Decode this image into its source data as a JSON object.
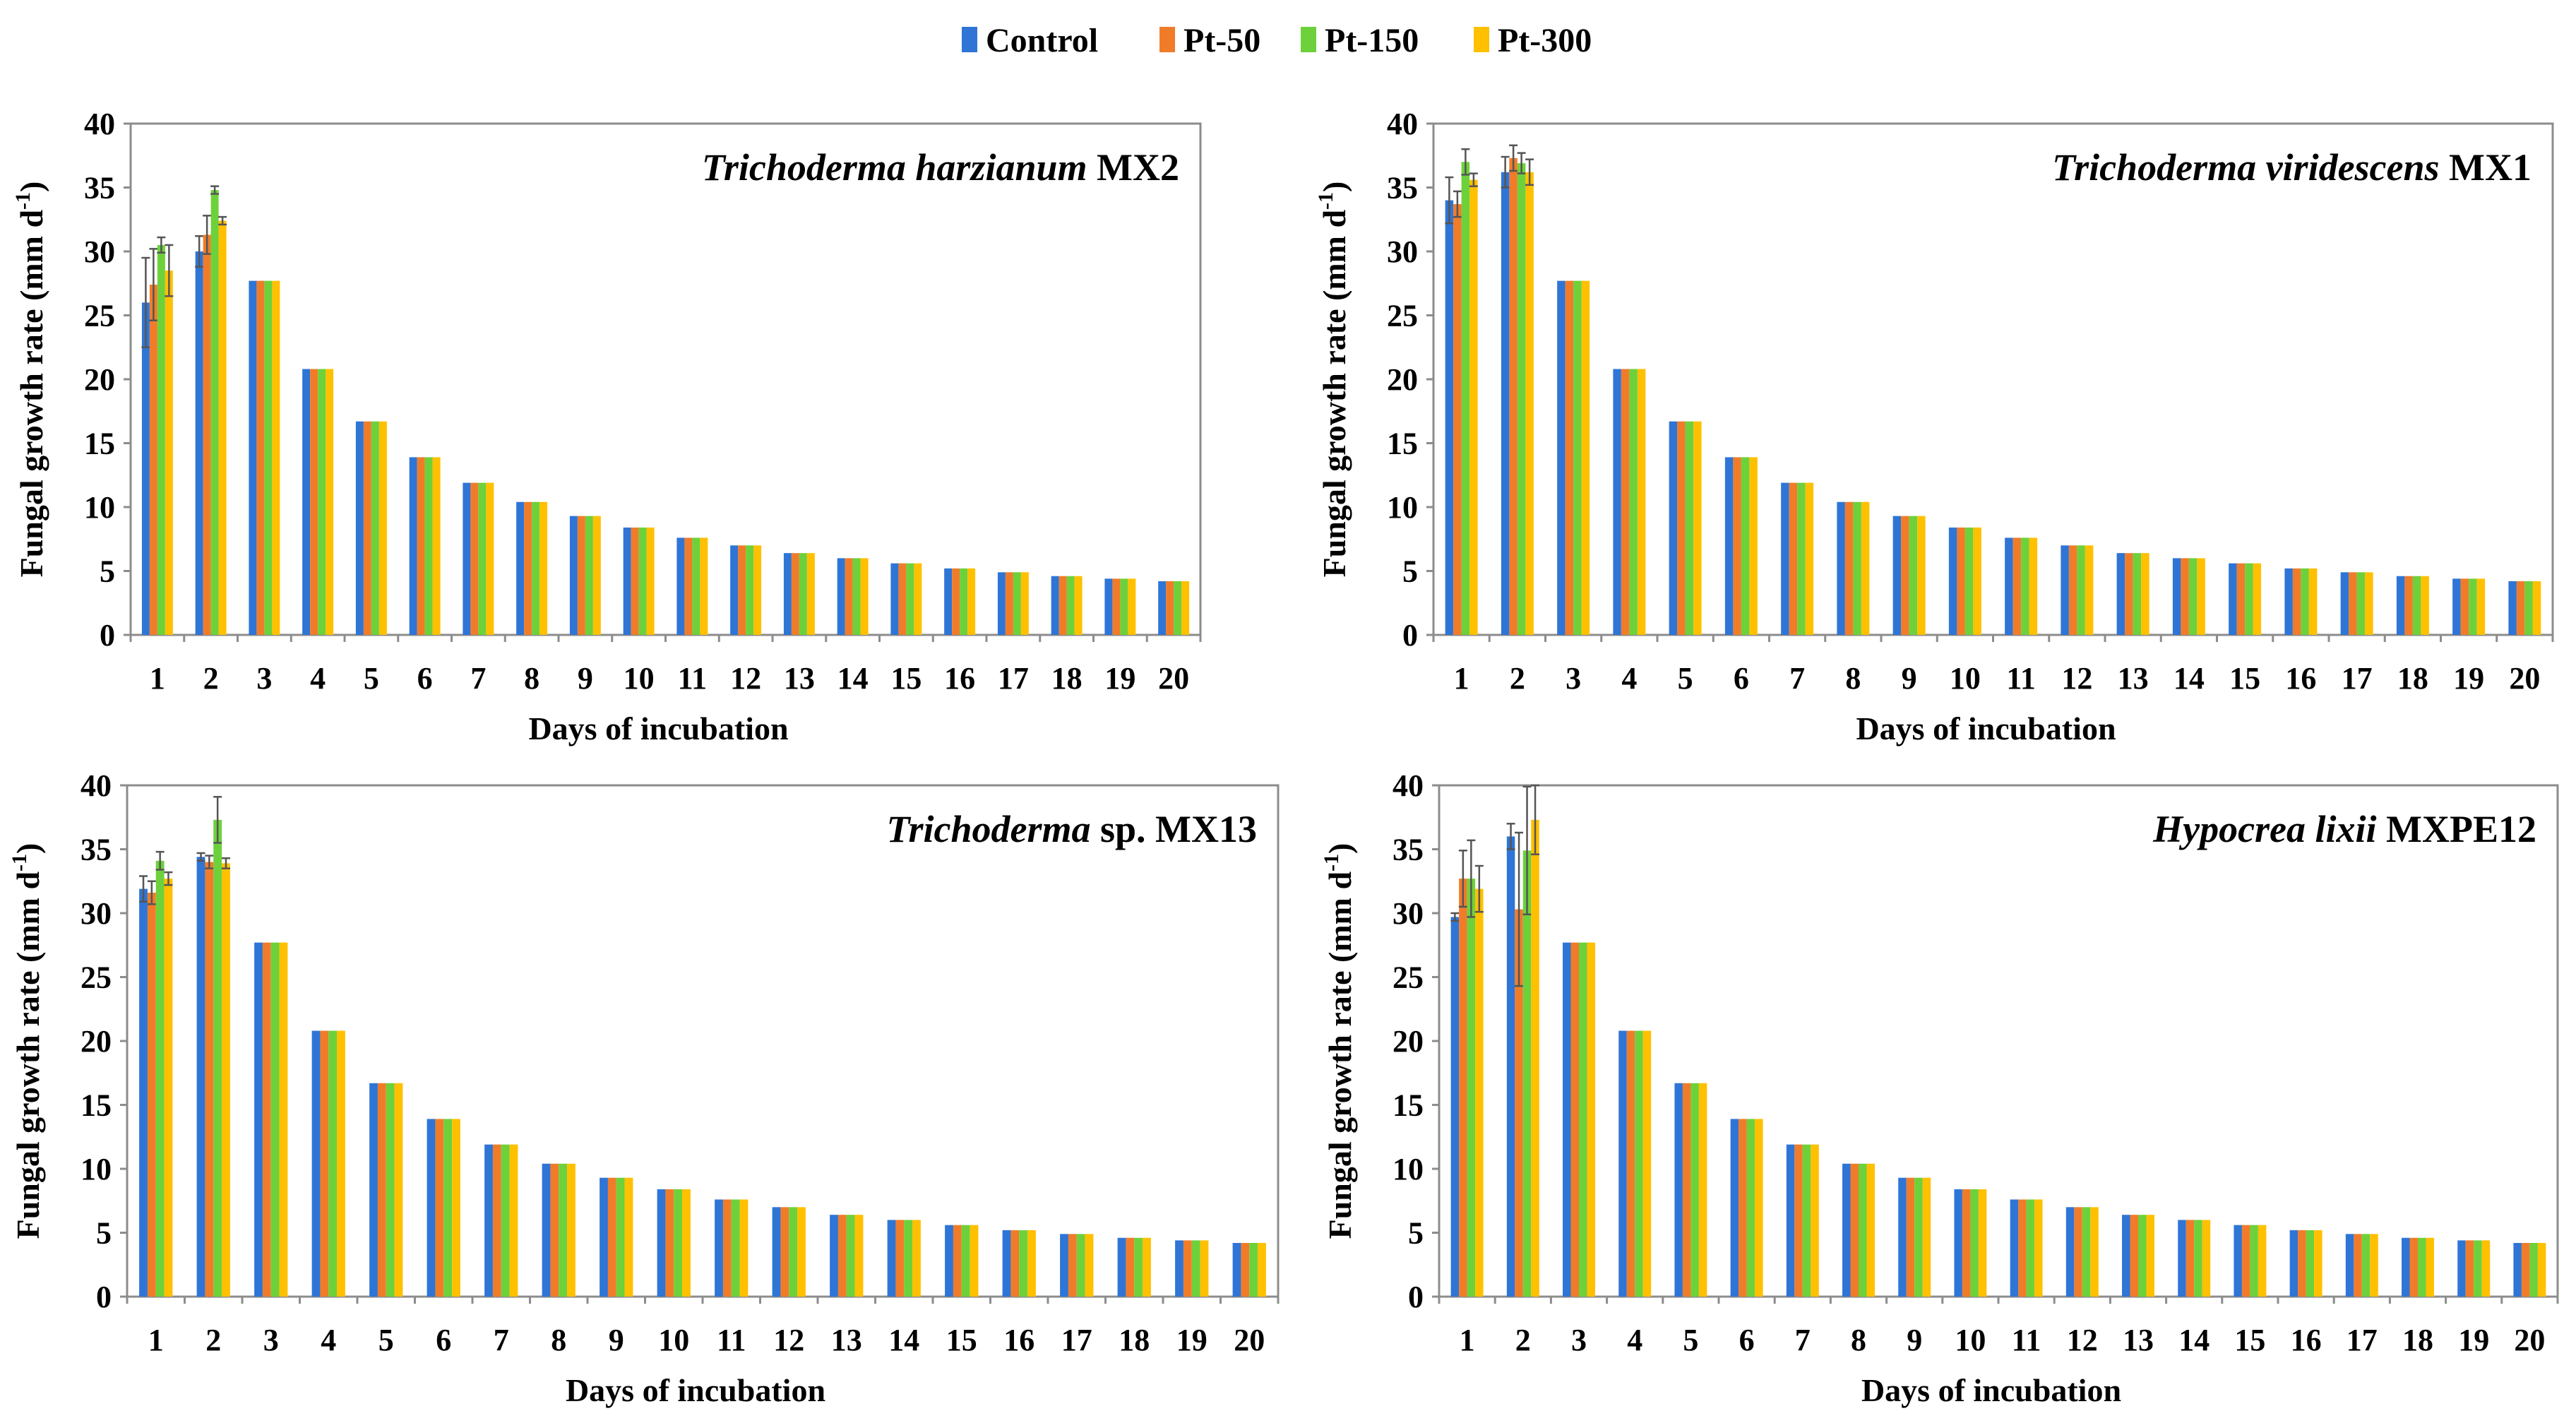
{
  "legend": {
    "entries": [
      {
        "name": "Control",
        "color": "#2e75d6"
      },
      {
        "name": "Pt-50",
        "color": "#f07c2a"
      },
      {
        "name": "Pt-150",
        "color": "#6dd13b"
      },
      {
        "name": "Pt-300",
        "color": "#ffc000"
      }
    ]
  },
  "chart_data": [
    {
      "type": "bar",
      "title": "Trichoderma harzianum MX2",
      "title_italic": "Trichoderma harzianum",
      "title_plain": "MX2",
      "xlabel": "Days of incubation",
      "ylabel": "Fungal growth rate (mm d",
      "ylabel_sup": "-1",
      "ylabel_close": ")",
      "ylim": [
        0,
        40
      ],
      "yticks": [
        0,
        5,
        10,
        15,
        20,
        25,
        30,
        35,
        40
      ],
      "categories": [
        "1",
        "2",
        "3",
        "4",
        "5",
        "6",
        "7",
        "8",
        "9",
        "10",
        "11",
        "12",
        "13",
        "14",
        "15",
        "16",
        "17",
        "18",
        "19",
        "20"
      ],
      "series": [
        {
          "name": "Control",
          "values": [
            26.0,
            30.0,
            27.7,
            20.8,
            16.7,
            13.9,
            11.9,
            10.4,
            9.3,
            8.4,
            7.6,
            7.0,
            6.4,
            6.0,
            5.6,
            5.2,
            4.9,
            4.6,
            4.4,
            4.2
          ],
          "errors": [
            3.5,
            1.2,
            0,
            0,
            0,
            0,
            0,
            0,
            0,
            0,
            0,
            0,
            0,
            0,
            0,
            0,
            0,
            0,
            0,
            0
          ]
        },
        {
          "name": "Pt-50",
          "values": [
            27.4,
            31.3,
            27.7,
            20.8,
            16.7,
            13.9,
            11.9,
            10.4,
            9.3,
            8.4,
            7.6,
            7.0,
            6.4,
            6.0,
            5.6,
            5.2,
            4.9,
            4.6,
            4.4,
            4.2
          ],
          "errors": [
            2.8,
            1.5,
            0,
            0,
            0,
            0,
            0,
            0,
            0,
            0,
            0,
            0,
            0,
            0,
            0,
            0,
            0,
            0,
            0,
            0
          ]
        },
        {
          "name": "Pt-150",
          "values": [
            30.5,
            34.8,
            27.7,
            20.8,
            16.7,
            13.9,
            11.9,
            10.4,
            9.3,
            8.4,
            7.6,
            7.0,
            6.4,
            6.0,
            5.6,
            5.2,
            4.9,
            4.6,
            4.4,
            4.2
          ],
          "errors": [
            0.6,
            0.3,
            0,
            0,
            0,
            0,
            0,
            0,
            0,
            0,
            0,
            0,
            0,
            0,
            0,
            0,
            0,
            0,
            0,
            0
          ]
        },
        {
          "name": "Pt-300",
          "values": [
            28.5,
            32.4,
            27.7,
            20.8,
            16.7,
            13.9,
            11.9,
            10.4,
            9.3,
            8.4,
            7.6,
            7.0,
            6.4,
            6.0,
            5.6,
            5.2,
            4.9,
            4.6,
            4.4,
            4.2
          ],
          "errors": [
            2.0,
            0.3,
            0,
            0,
            0,
            0,
            0,
            0,
            0,
            0,
            0,
            0,
            0,
            0,
            0,
            0,
            0,
            0,
            0,
            0
          ]
        }
      ]
    },
    {
      "type": "bar",
      "title": "Trichoderma viridescens MX1",
      "title_italic": "Trichoderma viridescens",
      "title_plain": "MX1",
      "xlabel": "Days of incubation",
      "ylabel": "Fungal growth rate (mm d",
      "ylabel_sup": "-1",
      "ylabel_close": ")",
      "ylim": [
        0,
        40
      ],
      "yticks": [
        0,
        5,
        10,
        15,
        20,
        25,
        30,
        35,
        40
      ],
      "categories": [
        "1",
        "2",
        "3",
        "4",
        "5",
        "6",
        "7",
        "8",
        "9",
        "10",
        "11",
        "12",
        "13",
        "14",
        "15",
        "16",
        "17",
        "18",
        "19",
        "20"
      ],
      "series": [
        {
          "name": "Control",
          "values": [
            34.0,
            36.2,
            27.7,
            20.8,
            16.7,
            13.9,
            11.9,
            10.4,
            9.3,
            8.4,
            7.6,
            7.0,
            6.4,
            6.0,
            5.6,
            5.2,
            4.9,
            4.6,
            4.4,
            4.2
          ],
          "errors": [
            1.8,
            1.2,
            0,
            0,
            0,
            0,
            0,
            0,
            0,
            0,
            0,
            0,
            0,
            0,
            0,
            0,
            0,
            0,
            0,
            0
          ]
        },
        {
          "name": "Pt-50",
          "values": [
            33.7,
            37.3,
            27.7,
            20.8,
            16.7,
            13.9,
            11.9,
            10.4,
            9.3,
            8.4,
            7.6,
            7.0,
            6.4,
            6.0,
            5.6,
            5.2,
            4.9,
            4.6,
            4.4,
            4.2
          ],
          "errors": [
            1.0,
            1.0,
            0,
            0,
            0,
            0,
            0,
            0,
            0,
            0,
            0,
            0,
            0,
            0,
            0,
            0,
            0,
            0,
            0,
            0
          ]
        },
        {
          "name": "Pt-150",
          "values": [
            37.0,
            36.9,
            27.7,
            20.8,
            16.7,
            13.9,
            11.9,
            10.4,
            9.3,
            8.4,
            7.6,
            7.0,
            6.4,
            6.0,
            5.6,
            5.2,
            4.9,
            4.6,
            4.4,
            4.2
          ],
          "errors": [
            1.0,
            0.8,
            0,
            0,
            0,
            0,
            0,
            0,
            0,
            0,
            0,
            0,
            0,
            0,
            0,
            0,
            0,
            0,
            0,
            0
          ]
        },
        {
          "name": "Pt-300",
          "values": [
            35.6,
            36.2,
            27.7,
            20.8,
            16.7,
            13.9,
            11.9,
            10.4,
            9.3,
            8.4,
            7.6,
            7.0,
            6.4,
            6.0,
            5.6,
            5.2,
            4.9,
            4.6,
            4.4,
            4.2
          ],
          "errors": [
            0.5,
            1.0,
            0,
            0,
            0,
            0,
            0,
            0,
            0,
            0,
            0,
            0,
            0,
            0,
            0,
            0,
            0,
            0,
            0,
            0
          ]
        }
      ]
    },
    {
      "type": "bar",
      "title": "Trichoderma sp. MX13",
      "title_italic": "Trichoderma",
      "title_plain": "sp. MX13",
      "xlabel": "Days of incubation",
      "ylabel": "Fungal growth rate (mm d",
      "ylabel_sup": "-1",
      "ylabel_close": ")",
      "ylim": [
        0,
        40
      ],
      "yticks": [
        0,
        5,
        10,
        15,
        20,
        25,
        30,
        35,
        40
      ],
      "categories": [
        "1",
        "2",
        "3",
        "4",
        "5",
        "6",
        "7",
        "8",
        "9",
        "10",
        "11",
        "12",
        "13",
        "14",
        "15",
        "16",
        "17",
        "18",
        "19",
        "20"
      ],
      "series": [
        {
          "name": "Control",
          "values": [
            31.9,
            34.4,
            27.7,
            20.8,
            16.7,
            13.9,
            11.9,
            10.4,
            9.3,
            8.4,
            7.6,
            7.0,
            6.4,
            6.0,
            5.6,
            5.2,
            4.9,
            4.6,
            4.4,
            4.2
          ],
          "errors": [
            1.0,
            0.3,
            0,
            0,
            0,
            0,
            0,
            0,
            0,
            0,
            0,
            0,
            0,
            0,
            0,
            0,
            0,
            0,
            0,
            0
          ]
        },
        {
          "name": "Pt-50",
          "values": [
            31.6,
            34.0,
            27.7,
            20.8,
            16.7,
            13.9,
            11.9,
            10.4,
            9.3,
            8.4,
            7.6,
            7.0,
            6.4,
            6.0,
            5.6,
            5.2,
            4.9,
            4.6,
            4.4,
            4.2
          ],
          "errors": [
            0.9,
            0.5,
            0,
            0,
            0,
            0,
            0,
            0,
            0,
            0,
            0,
            0,
            0,
            0,
            0,
            0,
            0,
            0,
            0,
            0
          ]
        },
        {
          "name": "Pt-150",
          "values": [
            34.1,
            37.3,
            27.7,
            20.8,
            16.7,
            13.9,
            11.9,
            10.4,
            9.3,
            8.4,
            7.6,
            7.0,
            6.4,
            6.0,
            5.6,
            5.2,
            4.9,
            4.6,
            4.4,
            4.2
          ],
          "errors": [
            0.7,
            1.8,
            0,
            0,
            0,
            0,
            0,
            0,
            0,
            0,
            0,
            0,
            0,
            0,
            0,
            0,
            0,
            0,
            0,
            0
          ]
        },
        {
          "name": "Pt-300",
          "values": [
            32.7,
            33.9,
            27.7,
            20.8,
            16.7,
            13.9,
            11.9,
            10.4,
            9.3,
            8.4,
            7.6,
            7.0,
            6.4,
            6.0,
            5.6,
            5.2,
            4.9,
            4.6,
            4.4,
            4.2
          ],
          "errors": [
            0.5,
            0.4,
            0,
            0,
            0,
            0,
            0,
            0,
            0,
            0,
            0,
            0,
            0,
            0,
            0,
            0,
            0,
            0,
            0,
            0
          ]
        }
      ]
    },
    {
      "type": "bar",
      "title": "Hypocrea lixii MXPE12",
      "title_italic": "Hypocrea lixii",
      "title_plain": "MXPE12",
      "xlabel": "Days of incubation",
      "ylabel": "Fungal growth rate (mm d",
      "ylabel_sup": "-1",
      "ylabel_close": ")",
      "ylim": [
        0,
        40
      ],
      "yticks": [
        0,
        5,
        10,
        15,
        20,
        25,
        30,
        35,
        40
      ],
      "categories": [
        "1",
        "2",
        "3",
        "4",
        "5",
        "6",
        "7",
        "8",
        "9",
        "10",
        "11",
        "12",
        "13",
        "14",
        "15",
        "16",
        "17",
        "18",
        "19",
        "20"
      ],
      "series": [
        {
          "name": "Control",
          "values": [
            29.7,
            36.0,
            27.7,
            20.8,
            16.7,
            13.9,
            11.9,
            10.4,
            9.3,
            8.4,
            7.6,
            7.0,
            6.4,
            6.0,
            5.6,
            5.2,
            4.9,
            4.6,
            4.4,
            4.2
          ],
          "errors": [
            0.3,
            1.0,
            0,
            0,
            0,
            0,
            0,
            0,
            0,
            0,
            0,
            0,
            0,
            0,
            0,
            0,
            0,
            0,
            0,
            0
          ]
        },
        {
          "name": "Pt-50",
          "values": [
            32.7,
            30.3,
            27.7,
            20.8,
            16.7,
            13.9,
            11.9,
            10.4,
            9.3,
            8.4,
            7.6,
            7.0,
            6.4,
            6.0,
            5.6,
            5.2,
            4.9,
            4.6,
            4.4,
            4.2
          ],
          "errors": [
            2.2,
            6.0,
            0,
            0,
            0,
            0,
            0,
            0,
            0,
            0,
            0,
            0,
            0,
            0,
            0,
            0,
            0,
            0,
            0,
            0
          ]
        },
        {
          "name": "Pt-150",
          "values": [
            32.7,
            34.9,
            27.7,
            20.8,
            16.7,
            13.9,
            11.9,
            10.4,
            9.3,
            8.4,
            7.6,
            7.0,
            6.4,
            6.0,
            5.6,
            5.2,
            4.9,
            4.6,
            4.4,
            4.2
          ],
          "errors": [
            3.0,
            5.0,
            0,
            0,
            0,
            0,
            0,
            0,
            0,
            0,
            0,
            0,
            0,
            0,
            0,
            0,
            0,
            0,
            0,
            0
          ]
        },
        {
          "name": "Pt-300",
          "values": [
            31.9,
            37.3,
            27.7,
            20.8,
            16.7,
            13.9,
            11.9,
            10.4,
            9.3,
            8.4,
            7.6,
            7.0,
            6.4,
            6.0,
            5.6,
            5.2,
            4.9,
            4.6,
            4.4,
            4.2
          ],
          "errors": [
            1.8,
            2.7,
            0,
            0,
            0,
            0,
            0,
            0,
            0,
            0,
            0,
            0,
            0,
            0,
            0,
            0,
            0,
            0,
            0,
            0
          ]
        }
      ]
    }
  ]
}
